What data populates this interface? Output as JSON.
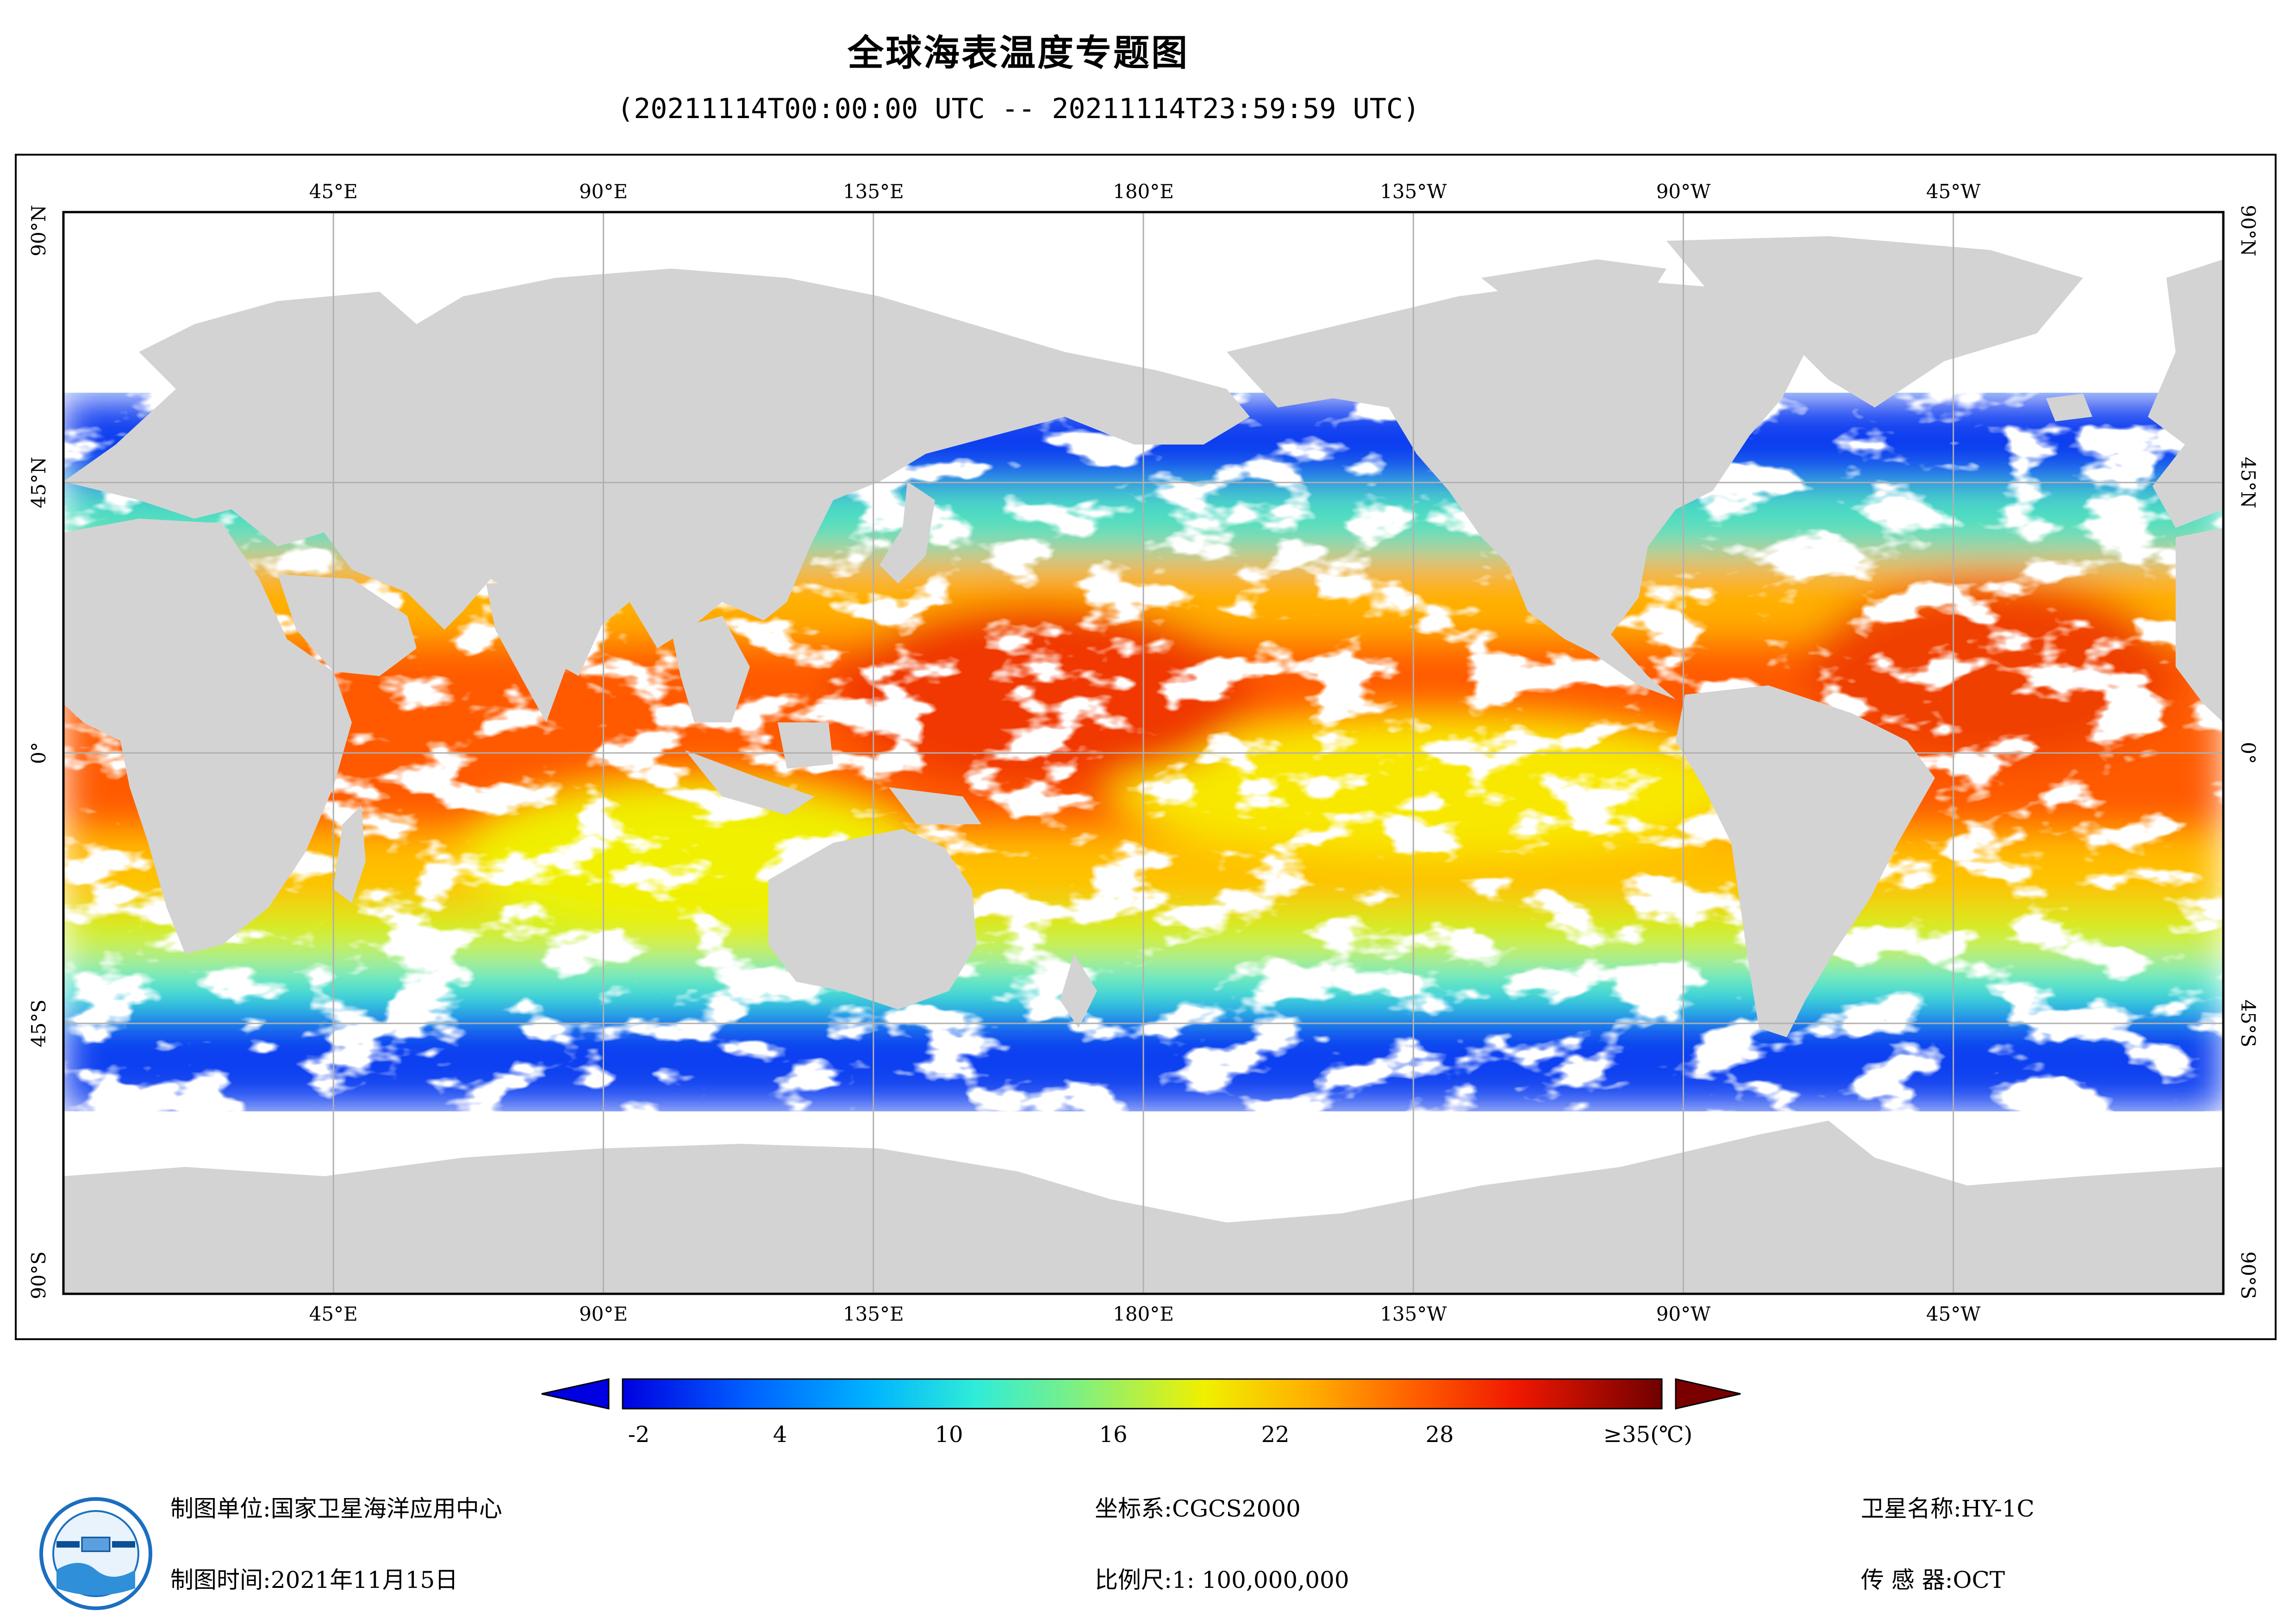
{
  "title": "全球海表温度专题图",
  "subtitle": "(20211114T00:00:00 UTC -- 20211114T23:59:59 UTC)",
  "map": {
    "lon_labels_top": [
      "45°E",
      "90°E",
      "135°E",
      "180°E",
      "135°W",
      "90°W",
      "45°W"
    ],
    "lon_labels_bottom": [
      "45°E",
      "90°E",
      "135°E",
      "180°E",
      "135°W",
      "90°W",
      "45°W"
    ],
    "lat_labels": [
      "90°N",
      "45°N",
      "0°",
      "45°S",
      "90°S"
    ],
    "land_color": "#d3d3d3",
    "grid_color": "#b0b0b0"
  },
  "legend": {
    "ticks": [
      "-2",
      "4",
      "10",
      "16",
      "22",
      "28",
      "≥35(℃)"
    ],
    "tick_values": [
      -2,
      4,
      10,
      16,
      22,
      28,
      35
    ],
    "colors": [
      "#0000e0",
      "#0060ff",
      "#00c8ff",
      "#40f0d0",
      "#a0f060",
      "#f0f000",
      "#ffb000",
      "#ff6000",
      "#f02000",
      "#c00000",
      "#7a0000"
    ]
  },
  "footer": {
    "unit_label": "制图单位:",
    "unit_value": "国家卫星海洋应用中心",
    "time_label": "制图时间:",
    "time_value": "2021年11月15日",
    "crs_label": "坐标系:",
    "crs_value": "CGCS2000",
    "scale_label": "比例尺:",
    "scale_value": "1: 100,000,000",
    "satellite_label": "卫星名称:",
    "satellite_value": "HY-1C",
    "sensor_label": "传 感 器:",
    "sensor_value": "OCT"
  }
}
